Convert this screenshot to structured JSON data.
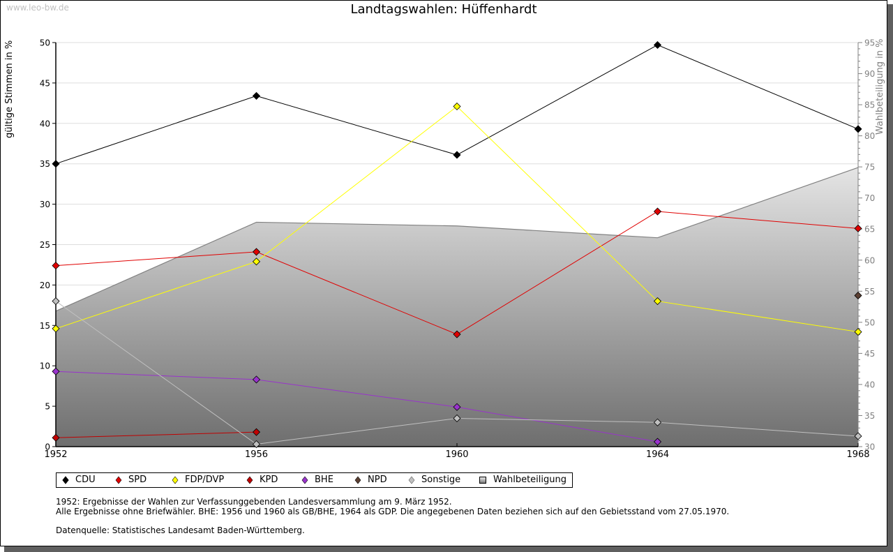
{
  "watermark": "www.leo-bw.de",
  "chart_data": {
    "type": "line",
    "title": "Landtagswahlen: Hüffenhardt",
    "x": [
      "1952",
      "1956",
      "1960",
      "1964",
      "1968"
    ],
    "ylabel": "gültige Stimmen in %",
    "ylabel_right": "Wahlbeteiligung in %",
    "ylim": [
      0,
      50
    ],
    "ylim_right": [
      30,
      95
    ],
    "yticks": [
      "0",
      "5",
      "10",
      "15",
      "20",
      "25",
      "30",
      "35",
      "40",
      "45",
      "50"
    ],
    "yticks_right": [
      "30",
      "35",
      "40",
      "45",
      "50",
      "55",
      "60",
      "65",
      "70",
      "75",
      "80",
      "85",
      "90",
      "95"
    ],
    "grid": true,
    "legend_position": "bottom-left",
    "series": [
      {
        "name": "CDU",
        "color": "#000000",
        "values": [
          35.0,
          43.4,
          36.1,
          49.7,
          39.3
        ]
      },
      {
        "name": "SPD",
        "color": "#e00000",
        "values": [
          22.4,
          24.1,
          13.9,
          29.1,
          27.0
        ]
      },
      {
        "name": "FDP/DVP",
        "color": "#ffff00",
        "values": [
          14.6,
          22.9,
          42.1,
          18.0,
          14.2
        ]
      },
      {
        "name": "KPD",
        "color": "#c00000",
        "values": [
          1.1,
          1.8,
          null,
          null,
          null
        ]
      },
      {
        "name": "BHE",
        "color": "#9933cc",
        "values": [
          9.3,
          8.3,
          4.9,
          0.6,
          null
        ]
      },
      {
        "name": "NPD",
        "color": "#5c4033",
        "values": [
          null,
          null,
          null,
          null,
          18.7
        ]
      },
      {
        "name": "Sonstige",
        "color": "#c0c0c0",
        "values": [
          18.0,
          0.3,
          3.5,
          3.0,
          1.3
        ]
      }
    ],
    "area_series": {
      "name": "Wahlbeteiligung",
      "axis": "right",
      "color": "#808080",
      "values": [
        51.8,
        66.1,
        65.5,
        63.6,
        74.9
      ]
    }
  },
  "notes": {
    "line1": "1952: Ergebnisse der Wahlen zur Verfassunggebenden Landesversammlung am 9. März 1952.",
    "line2": "Alle Ergebnisse ohne Briefwähler. BHE: 1956 und 1960 als GB/BHE, 1964 als GDP. Die angegebenen Daten beziehen sich auf den Gebietsstand vom 27.05.1970.",
    "source": "Datenquelle: Statistisches Landesamt Baden-Württemberg."
  }
}
